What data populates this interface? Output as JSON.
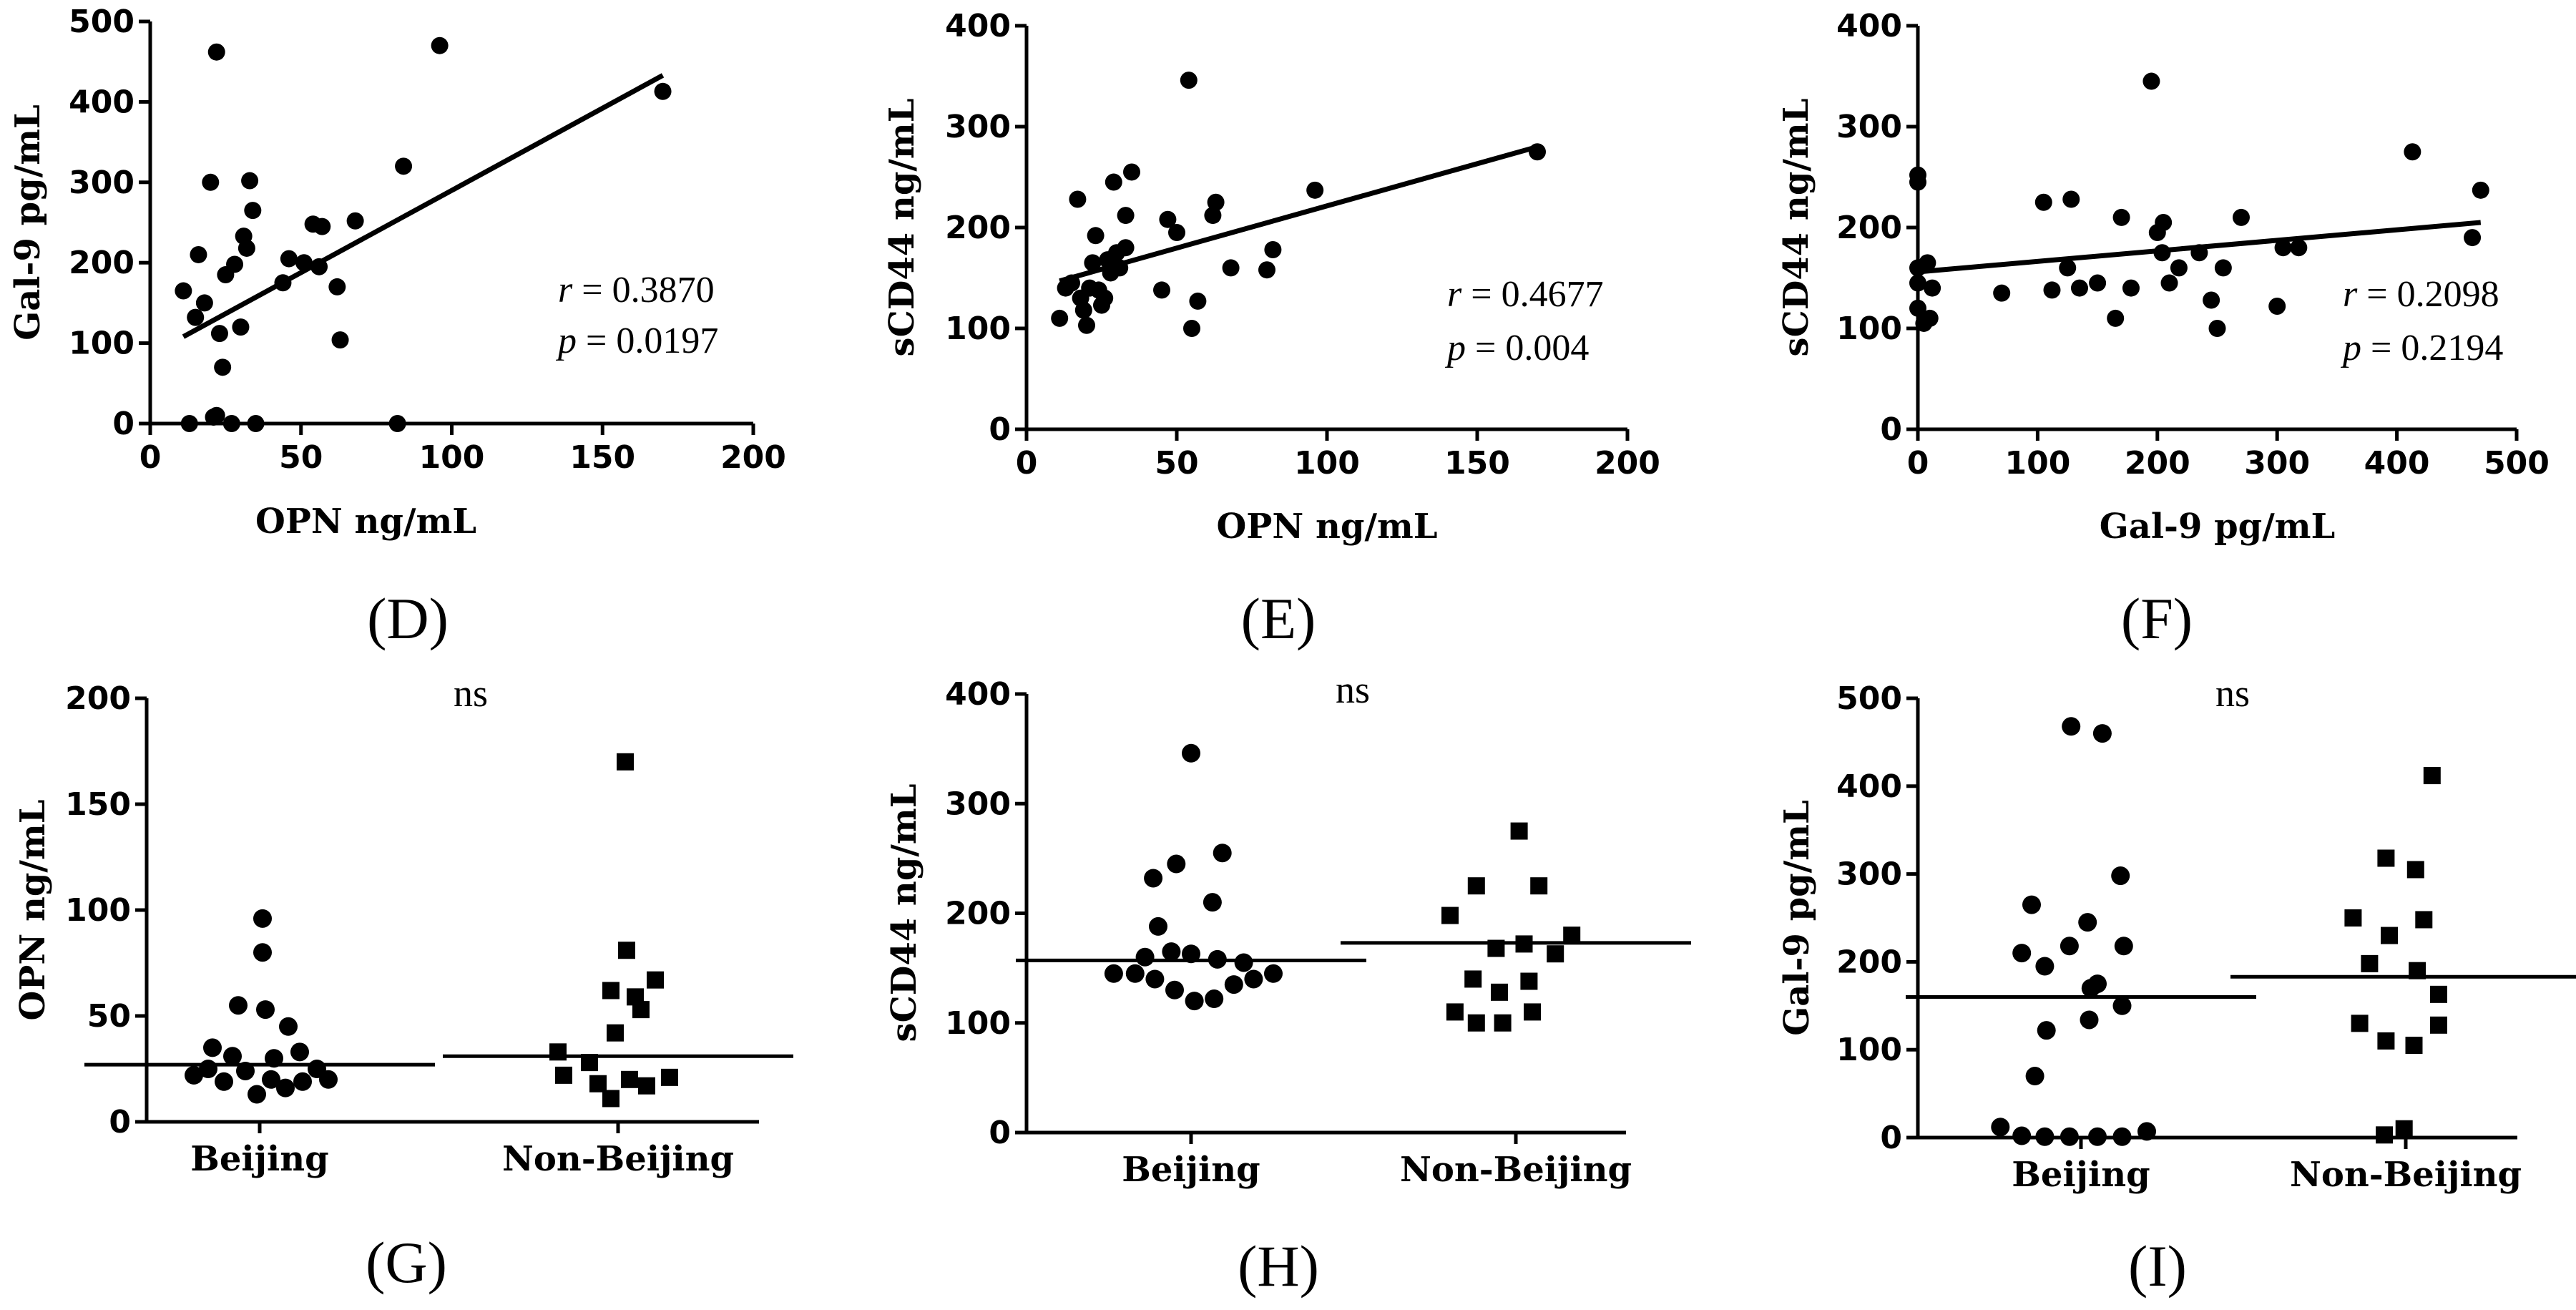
{
  "figure": {
    "panels": [
      "D",
      "E",
      "F",
      "G",
      "H",
      "I"
    ]
  },
  "chart_data": [
    {
      "id": "D",
      "type": "scatter",
      "panel_label": "(D)",
      "xlabel": "OPN ng/mL",
      "ylabel": "Gal-9 pg/mL",
      "xlim": [
        0,
        200
      ],
      "ylim": [
        0,
        500
      ],
      "xticks": [
        "0",
        "50",
        "100",
        "150",
        "200"
      ],
      "yticks": [
        "0",
        "100",
        "200",
        "300",
        "400",
        "500"
      ],
      "annotations": {
        "r_label": "r",
        "r_value": "= 0.3870",
        "p_label": "p",
        "p_value": "= 0.0197"
      },
      "regression": {
        "x": [
          11,
          170
        ],
        "y": [
          108,
          433
        ]
      },
      "points": [
        [
          11,
          165
        ],
        [
          15,
          132
        ],
        [
          16,
          210
        ],
        [
          18,
          150
        ],
        [
          20,
          300
        ],
        [
          22,
          462
        ],
        [
          23,
          112
        ],
        [
          22,
          10
        ],
        [
          24,
          70
        ],
        [
          25,
          185
        ],
        [
          21,
          8
        ],
        [
          28,
          198
        ],
        [
          30,
          120
        ],
        [
          31,
          233
        ],
        [
          32,
          218
        ],
        [
          33,
          302
        ],
        [
          34,
          265
        ],
        [
          44,
          175
        ],
        [
          46,
          205
        ],
        [
          51,
          200
        ],
        [
          54,
          248
        ],
        [
          56,
          195
        ],
        [
          57,
          245
        ],
        [
          62,
          170
        ],
        [
          63,
          104
        ],
        [
          68,
          252
        ],
        [
          84,
          320
        ],
        [
          96,
          470
        ],
        [
          170,
          413
        ],
        [
          13,
          0
        ],
        [
          27,
          0
        ],
        [
          35,
          0
        ],
        [
          82,
          0
        ]
      ]
    },
    {
      "id": "E",
      "type": "scatter",
      "panel_label": "(E)",
      "xlabel": "OPN ng/mL",
      "ylabel": "sCD44 ng/mL",
      "xlim": [
        0,
        200
      ],
      "ylim": [
        0,
        400
      ],
      "xticks": [
        "0",
        "50",
        "100",
        "150",
        "200"
      ],
      "yticks": [
        "0",
        "100",
        "200",
        "300",
        "400"
      ],
      "annotations": {
        "r_label": "r",
        "r_value": "= 0.4677",
        "p_label": "p",
        "p_value": "= 0.004"
      },
      "regression": {
        "x": [
          11,
          170
        ],
        "y": [
          147,
          280
        ]
      },
      "points": [
        [
          11,
          110
        ],
        [
          13,
          140
        ],
        [
          15,
          145
        ],
        [
          17,
          228
        ],
        [
          18,
          130
        ],
        [
          19,
          118
        ],
        [
          20,
          103
        ],
        [
          21,
          140
        ],
        [
          22,
          165
        ],
        [
          23,
          192
        ],
        [
          24,
          138
        ],
        [
          25,
          123
        ],
        [
          26,
          130
        ],
        [
          27,
          168
        ],
        [
          28,
          155
        ],
        [
          29,
          245
        ],
        [
          30,
          175
        ],
        [
          31,
          160
        ],
        [
          33,
          180
        ],
        [
          33,
          212
        ],
        [
          35,
          255
        ],
        [
          45,
          138
        ],
        [
          47,
          208
        ],
        [
          50,
          195
        ],
        [
          54,
          346
        ],
        [
          55,
          100
        ],
        [
          57,
          127
        ],
        [
          62,
          212
        ],
        [
          63,
          225
        ],
        [
          68,
          160
        ],
        [
          80,
          158
        ],
        [
          82,
          178
        ],
        [
          96,
          237
        ],
        [
          170,
          275
        ]
      ]
    },
    {
      "id": "F",
      "type": "scatter",
      "panel_label": "(F)",
      "xlabel": "Gal-9  pg/mL",
      "ylabel": "sCD44 ng/mL",
      "xlim": [
        0,
        500
      ],
      "ylim": [
        0,
        400
      ],
      "xticks": [
        "0",
        "100",
        "200",
        "300",
        "400",
        "500"
      ],
      "yticks": [
        "0",
        "100",
        "200",
        "300",
        "400"
      ],
      "annotations": {
        "r_label": "r",
        "r_value": "= 0.2098",
        "p_label": "p",
        "p_value": "= 0.2194"
      },
      "regression": {
        "x": [
          0,
          470
        ],
        "y": [
          156,
          205
        ]
      },
      "points": [
        [
          0,
          252
        ],
        [
          0,
          245
        ],
        [
          0,
          145
        ],
        [
          0,
          160
        ],
        [
          0,
          120
        ],
        [
          5,
          105
        ],
        [
          8,
          165
        ],
        [
          10,
          110
        ],
        [
          12,
          140
        ],
        [
          70,
          135
        ],
        [
          105,
          225
        ],
        [
          112,
          138
        ],
        [
          125,
          160
        ],
        [
          128,
          228
        ],
        [
          135,
          140
        ],
        [
          150,
          145
        ],
        [
          165,
          110
        ],
        [
          170,
          210
        ],
        [
          178,
          140
        ],
        [
          195,
          345
        ],
        [
          200,
          195
        ],
        [
          204,
          175
        ],
        [
          205,
          205
        ],
        [
          210,
          145
        ],
        [
          218,
          160
        ],
        [
          235,
          175
        ],
        [
          245,
          128
        ],
        [
          250,
          100
        ],
        [
          255,
          160
        ],
        [
          270,
          210
        ],
        [
          300,
          122
        ],
        [
          305,
          180
        ],
        [
          318,
          180
        ],
        [
          413,
          275
        ],
        [
          463,
          190
        ],
        [
          470,
          237
        ]
      ]
    },
    {
      "id": "G",
      "type": "scatter",
      "panel_label": "(G)",
      "ns_label": "ns",
      "xlabel": "",
      "ylabel": "OPN ng/mL",
      "categories": [
        "Beijing",
        "Non-Beijing"
      ],
      "ylim": [
        0,
        200
      ],
      "yticks": [
        "0",
        "50",
        "100",
        "150",
        "200"
      ],
      "medians": [
        27,
        31
      ],
      "series": [
        {
          "name": "Beijing",
          "marker": "circle",
          "points": [
            [
              -0.46,
              22
            ],
            [
              -0.33,
              35
            ],
            [
              -0.36,
              25
            ],
            [
              -0.25,
              19
            ],
            [
              -0.19,
              31
            ],
            [
              -0.1,
              24
            ],
            [
              -0.02,
              13
            ],
            [
              0.08,
              20
            ],
            [
              0.18,
              16
            ],
            [
              0.3,
              19
            ],
            [
              0.4,
              25
            ],
            [
              0.48,
              20
            ],
            [
              0.1,
              30
            ],
            [
              0.28,
              33
            ],
            [
              -0.15,
              55
            ],
            [
              0.04,
              53
            ],
            [
              0.2,
              45
            ],
            [
              0.02,
              80
            ],
            [
              0.02,
              96
            ]
          ]
        },
        {
          "name": "Non-Beijing",
          "marker": "square",
          "points": [
            [
              -0.42,
              33
            ],
            [
              -0.38,
              22
            ],
            [
              -0.2,
              28
            ],
            [
              -0.14,
              18
            ],
            [
              -0.05,
              11
            ],
            [
              0.08,
              20
            ],
            [
              0.2,
              17
            ],
            [
              0.36,
              21
            ],
            [
              -0.02,
              42
            ],
            [
              0.16,
              53
            ],
            [
              -0.05,
              62
            ],
            [
              0.12,
              59
            ],
            [
              0.26,
              67
            ],
            [
              0.06,
              81
            ],
            [
              0.05,
              170
            ]
          ]
        }
      ]
    },
    {
      "id": "H",
      "type": "scatter",
      "panel_label": "(H)",
      "ns_label": "ns",
      "xlabel": "",
      "ylabel": "sCD44 ng/mL",
      "categories": [
        "Beijing",
        "Non-Beijing"
      ],
      "ylim": [
        0,
        400
      ],
      "yticks": [
        "0",
        "100",
        "200",
        "300",
        "400"
      ],
      "medians": [
        157,
        173
      ],
      "series": [
        {
          "name": "Beijing",
          "marker": "circle",
          "points": [
            [
              -0.47,
              145
            ],
            [
              -0.34,
              145
            ],
            [
              -0.22,
              140
            ],
            [
              -0.1,
              130
            ],
            [
              0.02,
              120
            ],
            [
              0.14,
              122
            ],
            [
              0.26,
              135
            ],
            [
              0.38,
              140
            ],
            [
              0.5,
              145
            ],
            [
              -0.28,
              160
            ],
            [
              -0.12,
              165
            ],
            [
              0.0,
              163
            ],
            [
              0.16,
              158
            ],
            [
              0.32,
              155
            ],
            [
              -0.2,
              188
            ],
            [
              0.13,
              210
            ],
            [
              -0.23,
              232
            ],
            [
              -0.09,
              245
            ],
            [
              0.19,
              255
            ],
            [
              0.0,
              346
            ]
          ]
        },
        {
          "name": "Non-Beijing",
          "marker": "square",
          "points": [
            [
              -0.37,
              110
            ],
            [
              -0.24,
              100
            ],
            [
              -0.08,
              100
            ],
            [
              0.1,
              110
            ],
            [
              -0.26,
              140
            ],
            [
              -0.1,
              128
            ],
            [
              0.08,
              138
            ],
            [
              0.24,
              163
            ],
            [
              -0.4,
              198
            ],
            [
              0.34,
              180
            ],
            [
              -0.12,
              168
            ],
            [
              0.05,
              172
            ],
            [
              -0.24,
              225
            ],
            [
              0.14,
              225
            ],
            [
              0.02,
              275
            ]
          ]
        }
      ]
    },
    {
      "id": "I",
      "type": "scatter",
      "panel_label": "(I)",
      "ns_label": "ns",
      "xlabel": "",
      "ylabel": "Gal-9 pg/mL",
      "categories": [
        "Beijing",
        "Non-Beijing"
      ],
      "ylim": [
        0,
        500
      ],
      "yticks": [
        "0",
        "100",
        "200",
        "300",
        "400",
        "500"
      ],
      "medians": [
        160,
        183
      ],
      "series": [
        {
          "name": "Beijing",
          "marker": "circle",
          "points": [
            [
              -0.49,
              12
            ],
            [
              -0.36,
              2
            ],
            [
              -0.22,
              1
            ],
            [
              -0.07,
              1
            ],
            [
              0.1,
              1
            ],
            [
              0.25,
              1
            ],
            [
              0.4,
              7
            ],
            [
              -0.36,
              210
            ],
            [
              -0.22,
              195
            ],
            [
              -0.07,
              218
            ],
            [
              0.1,
              175
            ],
            [
              0.26,
              218
            ],
            [
              0.06,
              170
            ],
            [
              0.25,
              150
            ],
            [
              -0.21,
              122
            ],
            [
              0.05,
              134
            ],
            [
              -0.28,
              70
            ],
            [
              -0.3,
              265
            ],
            [
              0.04,
              245
            ],
            [
              0.24,
              298
            ],
            [
              -0.06,
              468
            ],
            [
              0.13,
              460
            ]
          ]
        },
        {
          "name": "Non-Beijing",
          "marker": "square",
          "points": [
            [
              -0.13,
              3
            ],
            [
              -0.01,
              10
            ],
            [
              -0.28,
              130
            ],
            [
              -0.12,
              110
            ],
            [
              0.05,
              105
            ],
            [
              0.2,
              128
            ],
            [
              -0.32,
              250
            ],
            [
              -0.1,
              230
            ],
            [
              0.11,
              248
            ],
            [
              -0.22,
              198
            ],
            [
              0.07,
              190
            ],
            [
              0.2,
              163
            ],
            [
              -0.12,
              318
            ],
            [
              0.06,
              305
            ],
            [
              0.16,
              412
            ]
          ]
        }
      ]
    }
  ]
}
